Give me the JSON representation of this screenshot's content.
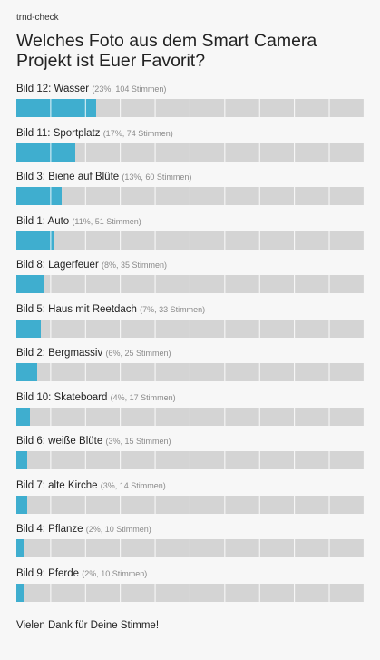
{
  "brand": "trnd-check",
  "question": "Welches Foto aus dem Smart Camera Projekt ist Euer Favorit?",
  "options": [
    {
      "label": "Bild 12: Wasser",
      "meta": "(23%, 104 Stimmen)",
      "percent": 23
    },
    {
      "label": "Bild 11: Sportplatz",
      "meta": "(17%, 74 Stimmen)",
      "percent": 17
    },
    {
      "label": "Bild 3: Biene auf Blüte",
      "meta": "(13%, 60 Stimmen)",
      "percent": 13
    },
    {
      "label": "Bild 1: Auto",
      "meta": "(11%, 51 Stimmen)",
      "percent": 11
    },
    {
      "label": "Bild 8: Lagerfeuer",
      "meta": "(8%, 35 Stimmen)",
      "percent": 8
    },
    {
      "label": "Bild 5: Haus mit Reetdach",
      "meta": "(7%, 33 Stimmen)",
      "percent": 7
    },
    {
      "label": "Bild 2: Bergmassiv",
      "meta": "(6%, 25 Stimmen)",
      "percent": 6
    },
    {
      "label": "Bild 10: Skateboard",
      "meta": "(4%, 17 Stimmen)",
      "percent": 4
    },
    {
      "label": "Bild 6: weiße Blüte",
      "meta": "(3%, 15 Stimmen)",
      "percent": 3
    },
    {
      "label": "Bild 7: alte Kirche",
      "meta": "(3%, 14 Stimmen)",
      "percent": 3
    },
    {
      "label": "Bild 4: Pflanze",
      "meta": "(2%, 10 Stimmen)",
      "percent": 2
    },
    {
      "label": "Bild 9: Pferde",
      "meta": "(2%, 10 Stimmen)",
      "percent": 2
    }
  ],
  "footer": {
    "thanks": "Vielen Dank für Deine Stimme!"
  },
  "colors": {
    "bar_fill": "#3faecf",
    "bar_track": "#d4d4d4",
    "background": "#f7f7f7"
  }
}
